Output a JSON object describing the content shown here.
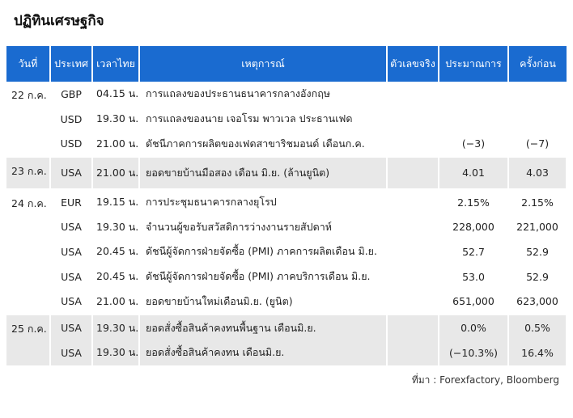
{
  "title": "ปฏิทินเศรษฐกิจ",
  "table": {
    "header": [
      "วันที่",
      "ประเทศ",
      "เวลาไทย",
      "เหตุการณ์",
      "ตัวเลขจริง",
      "ประมาณการ",
      "ครั้งก่อน"
    ],
    "groups": [
      {
        "date": "22 ก.ค.",
        "rows": [
          {
            "currency": "GBP",
            "time": "04.15 น.",
            "event": "การแถลงของประธานธนาคารกลางอังกฤษ"
          },
          {
            "currency": "USD",
            "time": "19.30 น.",
            "event": "การแถลงของนาย เจอโรม พาวเวล ประธานเฟด"
          },
          {
            "currency": "USD",
            "time": "21.00 น.",
            "event": "ดัชนีภาคการผลิตของเฟดสาขาริชมอนด์ เดือนก.ค.",
            "forecast": "(−3)",
            "previous": "(−7)"
          }
        ]
      },
      {
        "date": "23 ก.ค.",
        "rows": [
          {
            "currency": "USA",
            "time": "21.00 น.",
            "event": "ยอดขายบ้านมือสอง เดือน มิ.ย. (ล้านยูนิต)",
            "forecast": "4.01",
            "previous": "4.03"
          }
        ]
      },
      {
        "date": "24 ก.ค.",
        "rows": [
          {
            "currency": "EUR",
            "time": "19.15 น.",
            "event": "การประชุมธนาคารกลางยุโรป",
            "forecast": "2.15%",
            "previous": "2.15%"
          },
          {
            "currency": "USA",
            "time": "19.30 น.",
            "event": "จำนวนผู้ขอรับสวัสดิการว่างงานรายสัปดาห์",
            "forecast": "228,000",
            "previous": "221,000"
          },
          {
            "currency": "USA",
            "time": "20.45 น.",
            "event": "ดัชนีผู้จัดการฝ่ายจัดซื้อ (PMI) ภาคการผลิตเดือน มิ.ย.",
            "forecast": "52.7",
            "previous": "52.9"
          },
          {
            "currency": "USA",
            "time": "20.45 น.",
            "event": "ดัชนีผู้จัดการฝ่ายจัดซื้อ (PMI) ภาคบริการเดือน มิ.ย.",
            "forecast": "53.0",
            "previous": "52.9"
          },
          {
            "currency": "USA",
            "time": "21.00 น.",
            "event": "ยอดขายบ้านใหม่เดือนมิ.ย. (ยูนิต)",
            "forecast": "651,000",
            "previous": "623,000"
          }
        ]
      },
      {
        "date": "25 ก.ค.",
        "rows": [
          {
            "currency": "USA",
            "time": "19.30 น.",
            "event": "ยอดสั่งซื้อสินค้าคงทนพื้นฐาน เดือนมิ.ย.",
            "forecast": "0.0%",
            "previous": "0.5%"
          },
          {
            "currency": "USA",
            "time": "19.30 น.",
            "event": "ยอดสั่งซื้อสินค้าคงทน เดือนมิ.ย.",
            "forecast": "(−10.3%)",
            "previous": "16.4%"
          }
        ]
      }
    ]
  },
  "source": "ที่มา : Forexfactory, Bloomberg"
}
